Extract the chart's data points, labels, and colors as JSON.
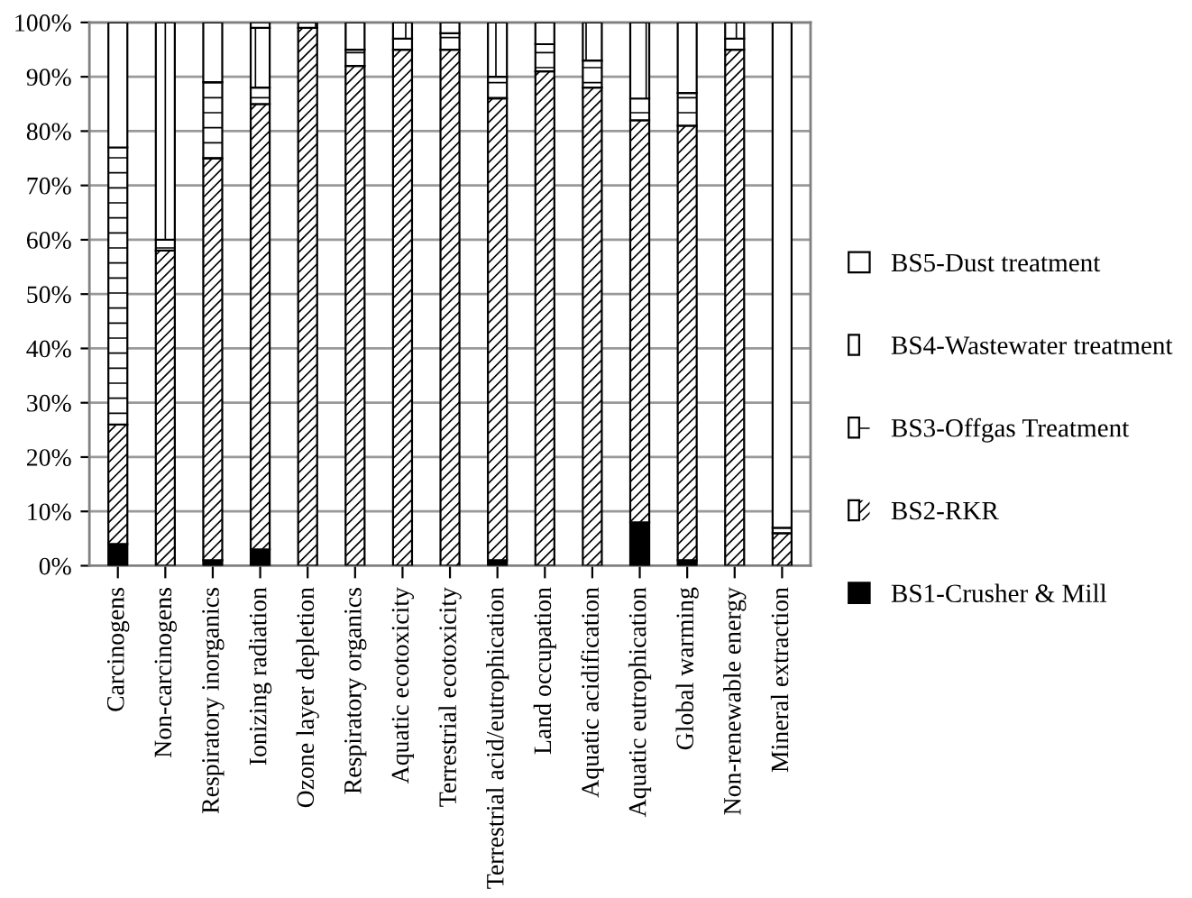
{
  "chart_data": {
    "type": "bar",
    "stacked": true,
    "categories": [
      "Carcinogens",
      "Non-carcinogens",
      "Respiratory inorganics",
      "Ionizing radiation",
      "Ozone layer depletion",
      "Respiratory organics",
      "Aquatic ecotoxicity",
      "Terrestrial ecotoxicity",
      "Terrestrial acid/eutrophication",
      "Land occupation",
      "Aquatic acidification",
      "Aquatic eutrophication",
      "Global warming",
      "Non-renewable energy",
      "Mineral extraction"
    ],
    "series": [
      {
        "name": "BS1-Crusher & Mill",
        "color": "#000000",
        "values": [
          4,
          0,
          1,
          3,
          0,
          0,
          0,
          0,
          1,
          0,
          0,
          8,
          1,
          0,
          0
        ]
      },
      {
        "name": "BS2-RKR",
        "color": "#ffffff",
        "values": [
          22,
          58,
          74,
          82,
          99,
          92,
          95,
          95,
          85,
          91,
          88,
          74,
          80,
          95,
          6
        ]
      },
      {
        "name": "BS3-Offgas Treatment",
        "color": "#ffffff",
        "values": [
          51,
          2,
          14,
          3,
          0,
          3,
          2,
          3,
          4,
          5,
          5,
          4,
          6,
          2,
          1
        ]
      },
      {
        "name": "BS4-Wastewater treatment",
        "color": "#ffffff",
        "values": [
          23,
          40,
          11,
          11,
          1,
          5,
          3,
          2,
          10,
          4,
          7,
          14,
          13,
          3,
          93
        ]
      },
      {
        "name": "BS5-Dust treatment",
        "color": "#ffffff",
        "values": [
          0,
          0,
          0,
          1,
          0,
          0,
          0,
          0,
          0,
          0,
          0,
          0,
          0,
          0,
          0
        ]
      }
    ],
    "ylim": [
      0,
      100
    ],
    "yticks": [
      {
        "value": 0,
        "label": "0%"
      },
      {
        "value": 10,
        "label": "10%"
      },
      {
        "value": 20,
        "label": "20%"
      },
      {
        "value": 30,
        "label": "30%"
      },
      {
        "value": 40,
        "label": "40%"
      },
      {
        "value": 50,
        "label": "50%"
      },
      {
        "value": 60,
        "label": "60%"
      },
      {
        "value": 70,
        "label": "70%"
      },
      {
        "value": 80,
        "label": "80%"
      },
      {
        "value": 90,
        "label": "90%"
      },
      {
        "value": 100,
        "label": "100%"
      }
    ],
    "grid": "y",
    "legend": "right"
  }
}
